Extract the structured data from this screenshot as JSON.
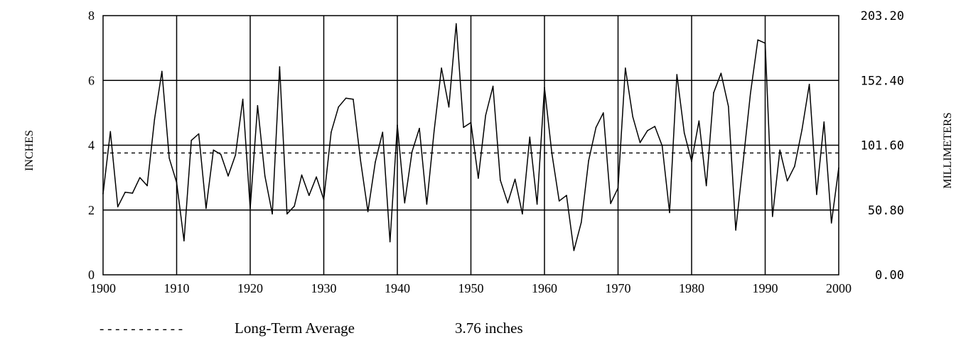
{
  "chart_data": {
    "type": "line",
    "xlabel": "",
    "ylabel": "INCHES",
    "y2label": "MILLIMETERS",
    "xlim": [
      1900,
      2000
    ],
    "ylim": [
      0,
      8
    ],
    "x_ticks": [
      1900,
      1910,
      1920,
      1930,
      1940,
      1950,
      1960,
      1970,
      1980,
      1990,
      2000
    ],
    "x_tick_labels": [
      "1900",
      "1910",
      "1920",
      "1930",
      "1940",
      "1950",
      "1960",
      "1970",
      "1980",
      "1990",
      "2000"
    ],
    "y_ticks": [
      0,
      2,
      4,
      6,
      8
    ],
    "y_tick_labels": [
      "0",
      "2",
      "4",
      "6",
      "8"
    ],
    "y2_tick_labels": [
      "0.00",
      "50.80",
      "101.60",
      "152.40",
      "203.20"
    ],
    "grid": true,
    "average": {
      "value": 3.76,
      "legend_label": "Long-Term Average",
      "value_label": "3.76 inches",
      "dash_sample": "- - - - - - - - - - -"
    },
    "series": [
      {
        "x": [
          1900,
          1901,
          1902,
          1903,
          1904,
          1905,
          1906,
          1907,
          1908,
          1909,
          1910,
          1911,
          1912,
          1913,
          1914,
          1915,
          1916,
          1917,
          1918,
          1919,
          1920,
          1921,
          1922,
          1923,
          1924,
          1925,
          1926,
          1927,
          1928,
          1929,
          1930,
          1931,
          1932,
          1933,
          1934,
          1935,
          1936,
          1937,
          1938,
          1939,
          1940,
          1941,
          1942,
          1943,
          1944,
          1945,
          1946,
          1947,
          1948,
          1949,
          1950,
          1951,
          1952,
          1953,
          1954,
          1955,
          1956,
          1957,
          1958,
          1959,
          1960,
          1961,
          1962,
          1963,
          1964,
          1965,
          1966,
          1967,
          1968,
          1969,
          1970,
          1971,
          1972,
          1973,
          1974,
          1975,
          1976,
          1977,
          1978,
          1979,
          1980,
          1981,
          1982,
          1983,
          1984,
          1985,
          1986,
          1987,
          1988,
          1989,
          1990,
          1991,
          1992,
          1993,
          1994,
          1995,
          1996,
          1997,
          1998,
          1999,
          2000
        ],
        "values": [
          2.5,
          4.42,
          2.1,
          2.55,
          2.52,
          3.0,
          2.75,
          4.8,
          6.28,
          3.6,
          2.85,
          1.05,
          4.15,
          4.35,
          2.05,
          3.85,
          3.72,
          3.05,
          3.7,
          5.42,
          2.05,
          5.22,
          3.05,
          1.88,
          6.42,
          1.88,
          2.12,
          3.08,
          2.45,
          3.02,
          2.32,
          4.4,
          5.18,
          5.45,
          5.42,
          3.52,
          1.95,
          3.48,
          4.4,
          1.02,
          4.62,
          2.22,
          3.8,
          4.52,
          2.18,
          4.45,
          6.38,
          5.18,
          7.75,
          4.55,
          4.7,
          2.98,
          4.92,
          5.82,
          2.92,
          2.22,
          2.95,
          1.88,
          4.25,
          2.18,
          5.78,
          3.75,
          2.28,
          2.45,
          0.75,
          1.62,
          3.52,
          4.55,
          5.0,
          2.2,
          2.68,
          6.38,
          4.88,
          4.08,
          4.45,
          4.58,
          3.98,
          1.92,
          6.18,
          4.38,
          3.5,
          4.75,
          2.75,
          5.62,
          6.22,
          5.2,
          1.38,
          3.48,
          5.6,
          7.25,
          7.15,
          1.8,
          3.85,
          2.9,
          3.35,
          4.48,
          5.88,
          2.48,
          4.72,
          1.6,
          3.3
        ]
      }
    ]
  }
}
